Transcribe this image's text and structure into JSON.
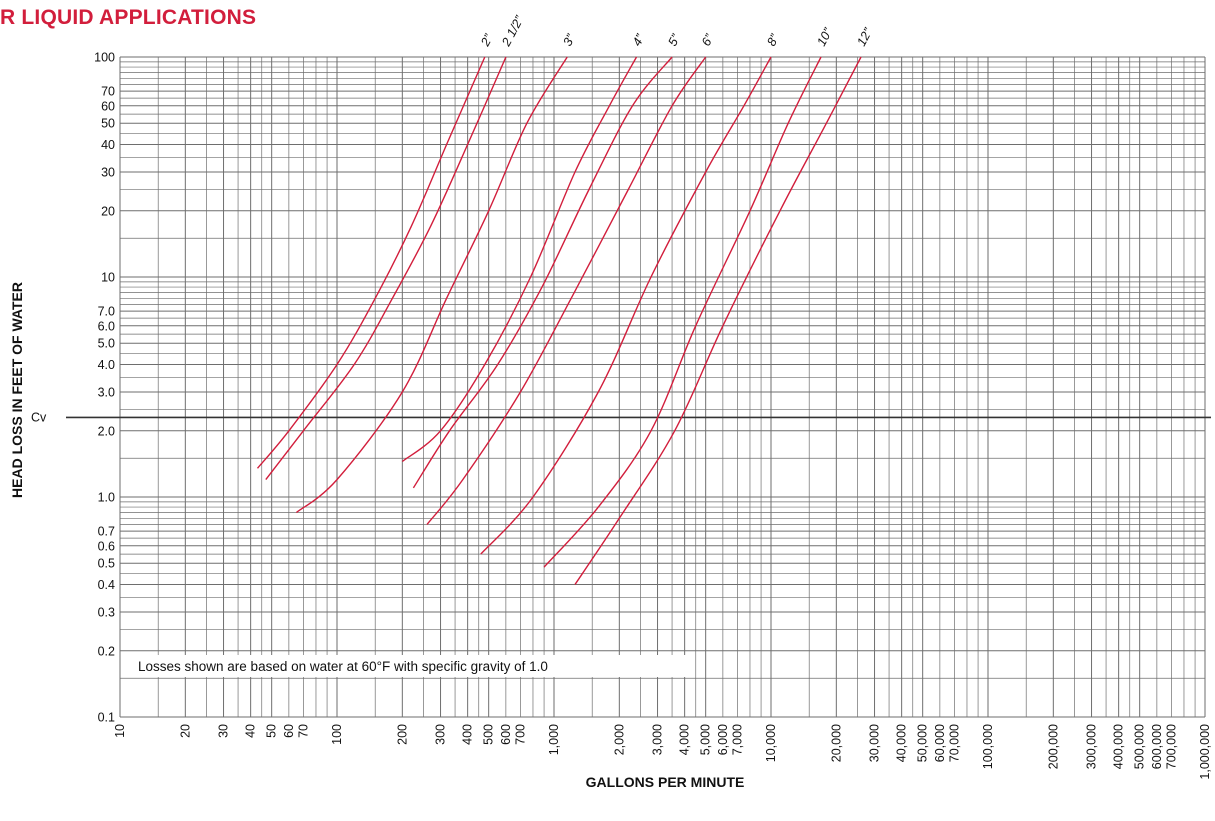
{
  "chart_data": {
    "type": "line",
    "title": "R LIQUID APPLICATIONS",
    "xlabel": "GALLONS PER MINUTE",
    "ylabel": "HEAD LOSS IN FEET OF WATER",
    "x_scale": "log",
    "y_scale": "log",
    "xlim": [
      10,
      1000000
    ],
    "ylim": [
      0.1,
      100
    ],
    "grid": true,
    "legend": "none",
    "x_tick_labels": [
      {
        "value": 10,
        "label": "10"
      },
      {
        "value": 20,
        "label": "20"
      },
      {
        "value": 30,
        "label": "30"
      },
      {
        "value": 40,
        "label": "40"
      },
      {
        "value": 50,
        "label": "50"
      },
      {
        "value": 60,
        "label": "60"
      },
      {
        "value": 70,
        "label": "70"
      },
      {
        "value": 100,
        "label": "100"
      },
      {
        "value": 200,
        "label": "200"
      },
      {
        "value": 300,
        "label": "300"
      },
      {
        "value": 400,
        "label": "400"
      },
      {
        "value": 500,
        "label": "500"
      },
      {
        "value": 600,
        "label": "600"
      },
      {
        "value": 700,
        "label": "700"
      },
      {
        "value": 1000,
        "label": "1,000"
      },
      {
        "value": 2000,
        "label": "2,000"
      },
      {
        "value": 3000,
        "label": "3,000"
      },
      {
        "value": 4000,
        "label": "4,000"
      },
      {
        "value": 5000,
        "label": "5,000"
      },
      {
        "value": 6000,
        "label": "6,000"
      },
      {
        "value": 7000,
        "label": "7,000"
      },
      {
        "value": 10000,
        "label": "10,000"
      },
      {
        "value": 20000,
        "label": "20,000"
      },
      {
        "value": 30000,
        "label": "30,000"
      },
      {
        "value": 40000,
        "label": "40,000"
      },
      {
        "value": 50000,
        "label": "50,000"
      },
      {
        "value": 60000,
        "label": "60,000"
      },
      {
        "value": 70000,
        "label": "70,000"
      },
      {
        "value": 100000,
        "label": "100,000"
      },
      {
        "value": 200000,
        "label": "200,000"
      },
      {
        "value": 300000,
        "label": "300,000"
      },
      {
        "value": 400000,
        "label": "400,000"
      },
      {
        "value": 500000,
        "label": "500,000"
      },
      {
        "value": 600000,
        "label": "600,000"
      },
      {
        "value": 700000,
        "label": "700,000"
      },
      {
        "value": 1000000,
        "label": "1,000,000"
      }
    ],
    "y_tick_labels": [
      {
        "value": 0.1,
        "label": "0.1"
      },
      {
        "value": 0.2,
        "label": "0.2"
      },
      {
        "value": 0.3,
        "label": "0.3"
      },
      {
        "value": 0.4,
        "label": "0.4"
      },
      {
        "value": 0.5,
        "label": "0.5"
      },
      {
        "value": 0.6,
        "label": "0.6"
      },
      {
        "value": 0.7,
        "label": "0.7"
      },
      {
        "value": 1,
        "label": "1.0"
      },
      {
        "value": 2,
        "label": "2.0"
      },
      {
        "value": 3,
        "label": "3.0"
      },
      {
        "value": 4,
        "label": "4.0"
      },
      {
        "value": 5,
        "label": "5.0"
      },
      {
        "value": 6,
        "label": "6.0"
      },
      {
        "value": 7,
        "label": "7.0"
      },
      {
        "value": 10,
        "label": "10"
      },
      {
        "value": 20,
        "label": "20"
      },
      {
        "value": 30,
        "label": "30"
      },
      {
        "value": 40,
        "label": "40"
      },
      {
        "value": 50,
        "label": "50"
      },
      {
        "value": 60,
        "label": "60"
      },
      {
        "value": 70,
        "label": "70"
      },
      {
        "value": 100,
        "label": "100"
      }
    ],
    "reference_line": {
      "label": "Cv",
      "y": 2.3
    },
    "annotation": "Losses shown are based on water at 60°F with specific gravity of 1.0",
    "line_color": "#d21e3c",
    "grid_color": "#6e6e6e",
    "series": [
      {
        "name": "2”",
        "points": [
          [
            43,
            1.35
          ],
          [
            60,
            2.0
          ],
          [
            100,
            4.0
          ],
          [
            150,
            8.0
          ],
          [
            220,
            17
          ],
          [
            320,
            40
          ],
          [
            480,
            100
          ]
        ]
      },
      {
        "name": "2 1/2”",
        "points": [
          [
            47,
            1.2
          ],
          [
            70,
            2.0
          ],
          [
            120,
            4.0
          ],
          [
            180,
            8.0
          ],
          [
            270,
            17
          ],
          [
            400,
            40
          ],
          [
            600,
            100
          ]
        ]
      },
      {
        "name": "3”",
        "points": [
          [
            65,
            0.85
          ],
          [
            100,
            1.2
          ],
          [
            200,
            3.0
          ],
          [
            320,
            8.0
          ],
          [
            500,
            20
          ],
          [
            750,
            50
          ],
          [
            1150,
            100
          ]
        ]
      },
      {
        "name": "4”",
        "points": [
          [
            200,
            1.45
          ],
          [
            300,
            2.0
          ],
          [
            480,
            4.0
          ],
          [
            780,
            10
          ],
          [
            1250,
            30
          ],
          [
            1800,
            60
          ],
          [
            2400,
            100
          ]
        ]
      },
      {
        "name": "5”",
        "points": [
          [
            225,
            1.1
          ],
          [
            330,
            2.0
          ],
          [
            550,
            4.0
          ],
          [
            880,
            9.0
          ],
          [
            1450,
            25
          ],
          [
            2300,
            60
          ],
          [
            3500,
            100
          ]
        ]
      },
      {
        "name": "6”",
        "points": [
          [
            260,
            0.75
          ],
          [
            380,
            1.2
          ],
          [
            700,
            3.0
          ],
          [
            1200,
            8.0
          ],
          [
            2200,
            25
          ],
          [
            3500,
            60
          ],
          [
            5000,
            100
          ]
        ]
      },
      {
        "name": "8”",
        "points": [
          [
            460,
            0.55
          ],
          [
            800,
            1.0
          ],
          [
            1600,
            3.0
          ],
          [
            2800,
            10
          ],
          [
            5000,
            30
          ],
          [
            7500,
            60
          ],
          [
            10000,
            100
          ]
        ]
      },
      {
        "name": "10”",
        "points": [
          [
            900,
            0.48
          ],
          [
            1600,
            0.9
          ],
          [
            2800,
            2.0
          ],
          [
            4500,
            6.0
          ],
          [
            8000,
            20
          ],
          [
            12000,
            50
          ],
          [
            17000,
            100
          ]
        ]
      },
      {
        "name": "12”",
        "points": [
          [
            1250,
            0.4
          ],
          [
            2000,
            0.8
          ],
          [
            3600,
            2.0
          ],
          [
            6000,
            6.0
          ],
          [
            11000,
            20
          ],
          [
            18000,
            50
          ],
          [
            26000,
            100
          ]
        ]
      }
    ]
  }
}
